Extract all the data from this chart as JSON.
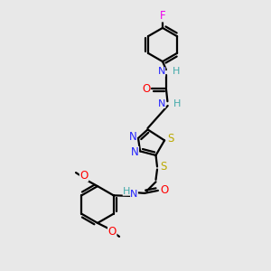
{
  "background_color": "#e8e8e8",
  "atom_colors": {
    "C": "#000000",
    "N": "#2222ff",
    "O": "#ff0000",
    "S": "#bbaa00",
    "F": "#ee00ee",
    "H": "#44aaaa",
    "NH_ring": "#2222ff"
  },
  "line_color": "#000000",
  "line_width": 1.6,
  "figsize": [
    3.0,
    3.0
  ],
  "dpi": 100
}
